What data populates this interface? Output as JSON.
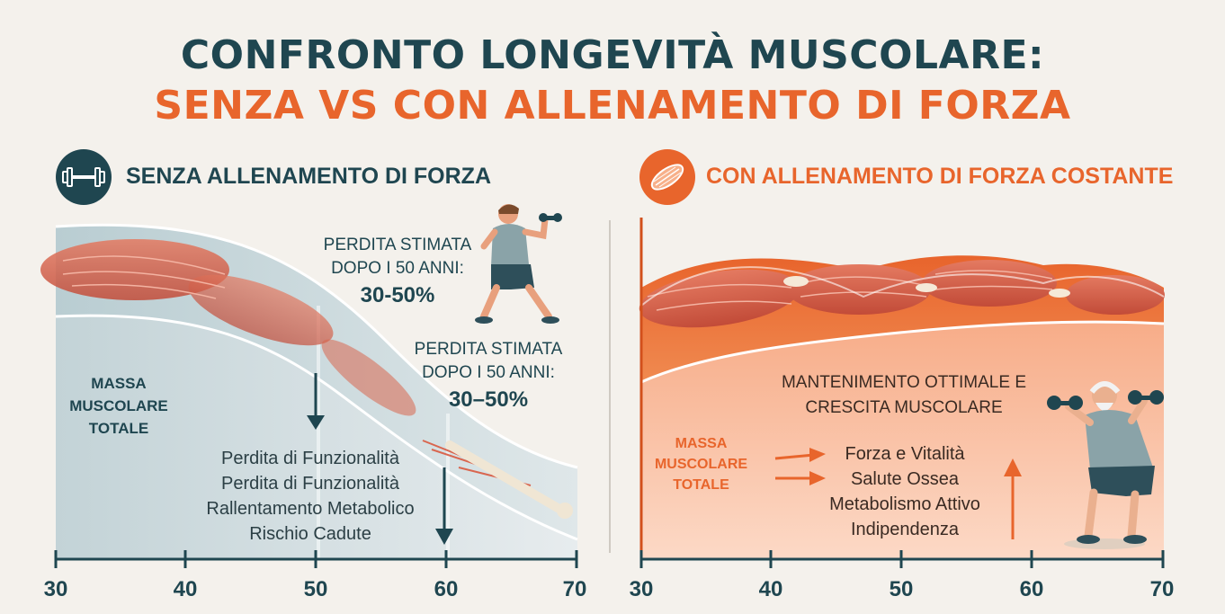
{
  "title": {
    "line1": "CONFRONTO LONGEVITÀ MUSCOLARE:",
    "line2": "SENZA VS CON ALLENAMENTO DI FORZA"
  },
  "left": {
    "header": "SENZA ALLENAMENTO DI FORZA",
    "icon": "dumbbell-icon",
    "area_label": [
      "MASSA",
      "MUSCOLARE",
      "TOTALE"
    ],
    "loss_text_1": [
      "PERDITA STIMATA",
      "DOPO I 50 ANNI:"
    ],
    "loss_value_1": "30-50%",
    "loss_text_2": [
      "PERDITA STIMATA",
      "DOPO I 50 ANNI:"
    ],
    "loss_value_2": "30–50%",
    "consequences": [
      "Perdita di Funzionalità",
      "Perdita di Funzionalità",
      "Rallentamento Metabolico",
      "Rischio Cadute"
    ],
    "ticks": [
      "30",
      "40",
      "50",
      "60",
      "70"
    ]
  },
  "right": {
    "header": "CON ALLENAMENTO DI FORZA COSTANTE",
    "icon": "muscle-icon",
    "main_text": [
      "MANTENIMENTO OTTIMALE E",
      "CRESCITA MUSCOLARE"
    ],
    "area_label": [
      "MASSA",
      "MUSCOLARE",
      "TOTALE"
    ],
    "benefits": [
      "Forza e Vitalità",
      "Salute Ossea",
      "Metabolismo Attivo",
      "Indipendenza"
    ],
    "ticks": [
      "30",
      "40",
      "50",
      "60",
      "70"
    ]
  },
  "colors": {
    "dark_teal": "#1f4650",
    "orange": "#e8652c",
    "muscle_red": "#d9664f",
    "background": "#f4f1ec"
  }
}
